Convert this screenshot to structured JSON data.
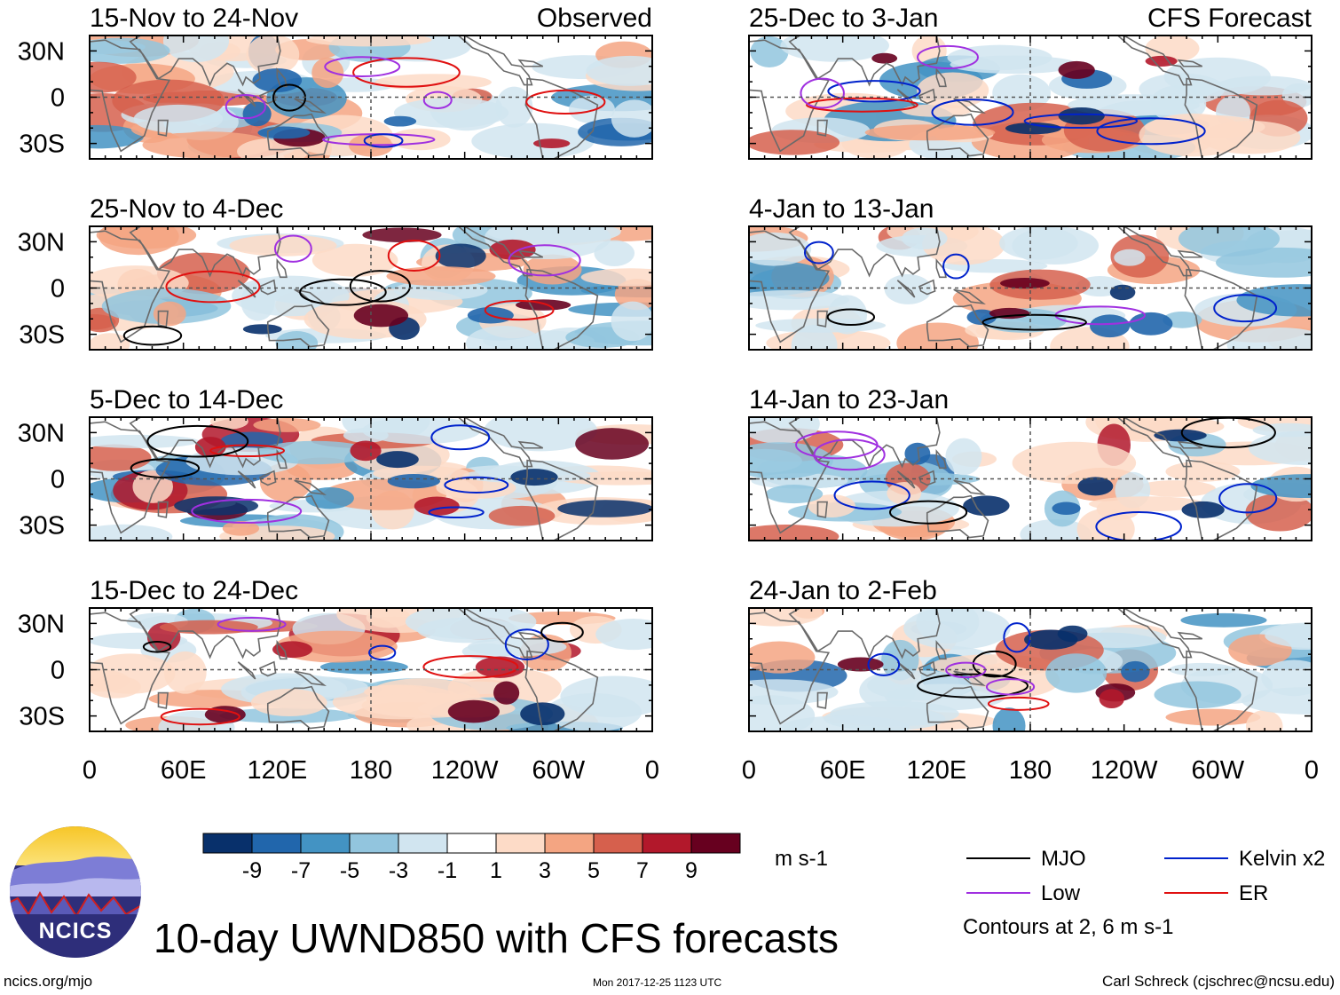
{
  "chart_data": {
    "type": "heatmap",
    "title": "10-day UWND850 with CFS forecasts",
    "variable": "UWND850",
    "units": "m s-1",
    "colorbar": {
      "ticks": [
        "-9",
        "-7",
        "-5",
        "-3",
        "-1",
        "1",
        "3",
        "5",
        "7",
        "9"
      ],
      "colors": [
        "#08306b",
        "#2166ac",
        "#4393c3",
        "#92c5de",
        "#d1e5f0",
        "#ffffff",
        "#fddbc7",
        "#f4a582",
        "#d6604d",
        "#b2182b",
        "#67001f"
      ]
    },
    "x_axis": {
      "ticks": [
        "0",
        "60E",
        "120E",
        "180",
        "120W",
        "60W",
        "0"
      ],
      "range_deg": [
        0,
        360
      ]
    },
    "y_axis": {
      "ticks": [
        "30N",
        "0",
        "30S"
      ],
      "range_deg": [
        -40,
        40
      ]
    },
    "column_labels": {
      "left": "Observed",
      "right": "CFS Forecast"
    },
    "panels": [
      {
        "title": "15-Nov to 24-Nov",
        "column": "left",
        "row": 0,
        "source": "Observed"
      },
      {
        "title": "25-Nov to 4-Dec",
        "column": "left",
        "row": 1,
        "source": "Observed"
      },
      {
        "title": "5-Dec to 14-Dec",
        "column": "left",
        "row": 2,
        "source": "Observed"
      },
      {
        "title": "15-Dec to 24-Dec",
        "column": "left",
        "row": 3,
        "source": "Observed"
      },
      {
        "title": "25-Dec to 3-Jan",
        "column": "right",
        "row": 0,
        "source": "CFS Forecast"
      },
      {
        "title": "4-Jan to 13-Jan",
        "column": "right",
        "row": 1,
        "source": "CFS Forecast"
      },
      {
        "title": "14-Jan to 23-Jan",
        "column": "right",
        "row": 2,
        "source": "CFS Forecast"
      },
      {
        "title": "24-Jan to 2-Feb",
        "column": "right",
        "row": 3,
        "source": "CFS Forecast"
      }
    ],
    "legend": {
      "entries": [
        {
          "label": "MJO",
          "color": "#000000"
        },
        {
          "label": "Kelvin x2",
          "color": "#0022cc"
        },
        {
          "label": "Low",
          "color": "#a030e0"
        },
        {
          "label": "ER",
          "color": "#e01010"
        }
      ],
      "note": "Contours at 2, 6 m s-1"
    }
  },
  "branding": {
    "logo_text": "NCICS",
    "url": "ncics.org/mjo",
    "author": "Carl Schreck (cjschrec@ncsu.edu)",
    "timestamp": "Mon 2017-12-25 1123 UTC"
  }
}
